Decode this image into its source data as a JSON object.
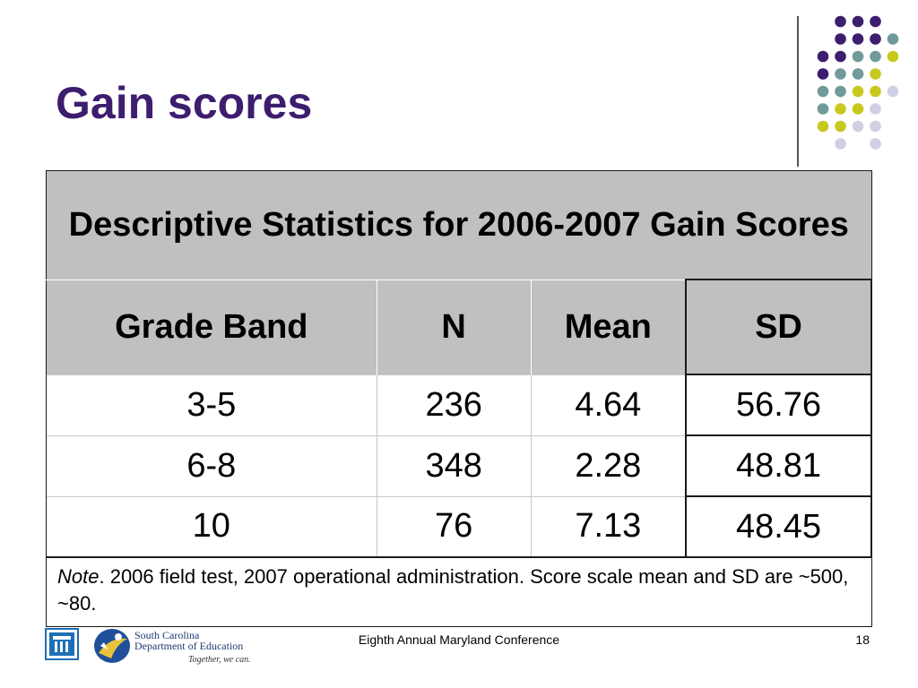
{
  "slide": {
    "title": "Gain scores",
    "page_number": "18",
    "footer": "Eighth Annual Maryland Conference"
  },
  "table": {
    "caption": "Descriptive Statistics for 2006-2007 Gain Scores",
    "headers": [
      "Grade Band",
      "N",
      "Mean",
      "SD"
    ],
    "rows": [
      [
        "3-5",
        "236",
        "4.64",
        "56.76"
      ],
      [
        "6-8",
        "348",
        "2.28",
        "48.81"
      ],
      [
        "10",
        "76",
        "7.13",
        "48.45"
      ]
    ],
    "note_label": "Note",
    "note_text": ". 2006 field test, 2007 operational administration. Score scale mean and SD are ~500, ~80."
  },
  "logo": {
    "line1": "South Carolina",
    "line2": "Department of Education",
    "tagline": "Together, we can."
  },
  "colors": {
    "title": "#3d1d6e",
    "header_fill": "#c0c0c0",
    "dot_purple": "#3d1d6e",
    "dot_teal": "#6f9a9a",
    "dot_yellow": "#c8c81e",
    "dot_lavender": "#d0d0e4"
  },
  "icons": {
    "left_logo": "building-columns-icon",
    "right_logo": "state-seal-icon"
  }
}
